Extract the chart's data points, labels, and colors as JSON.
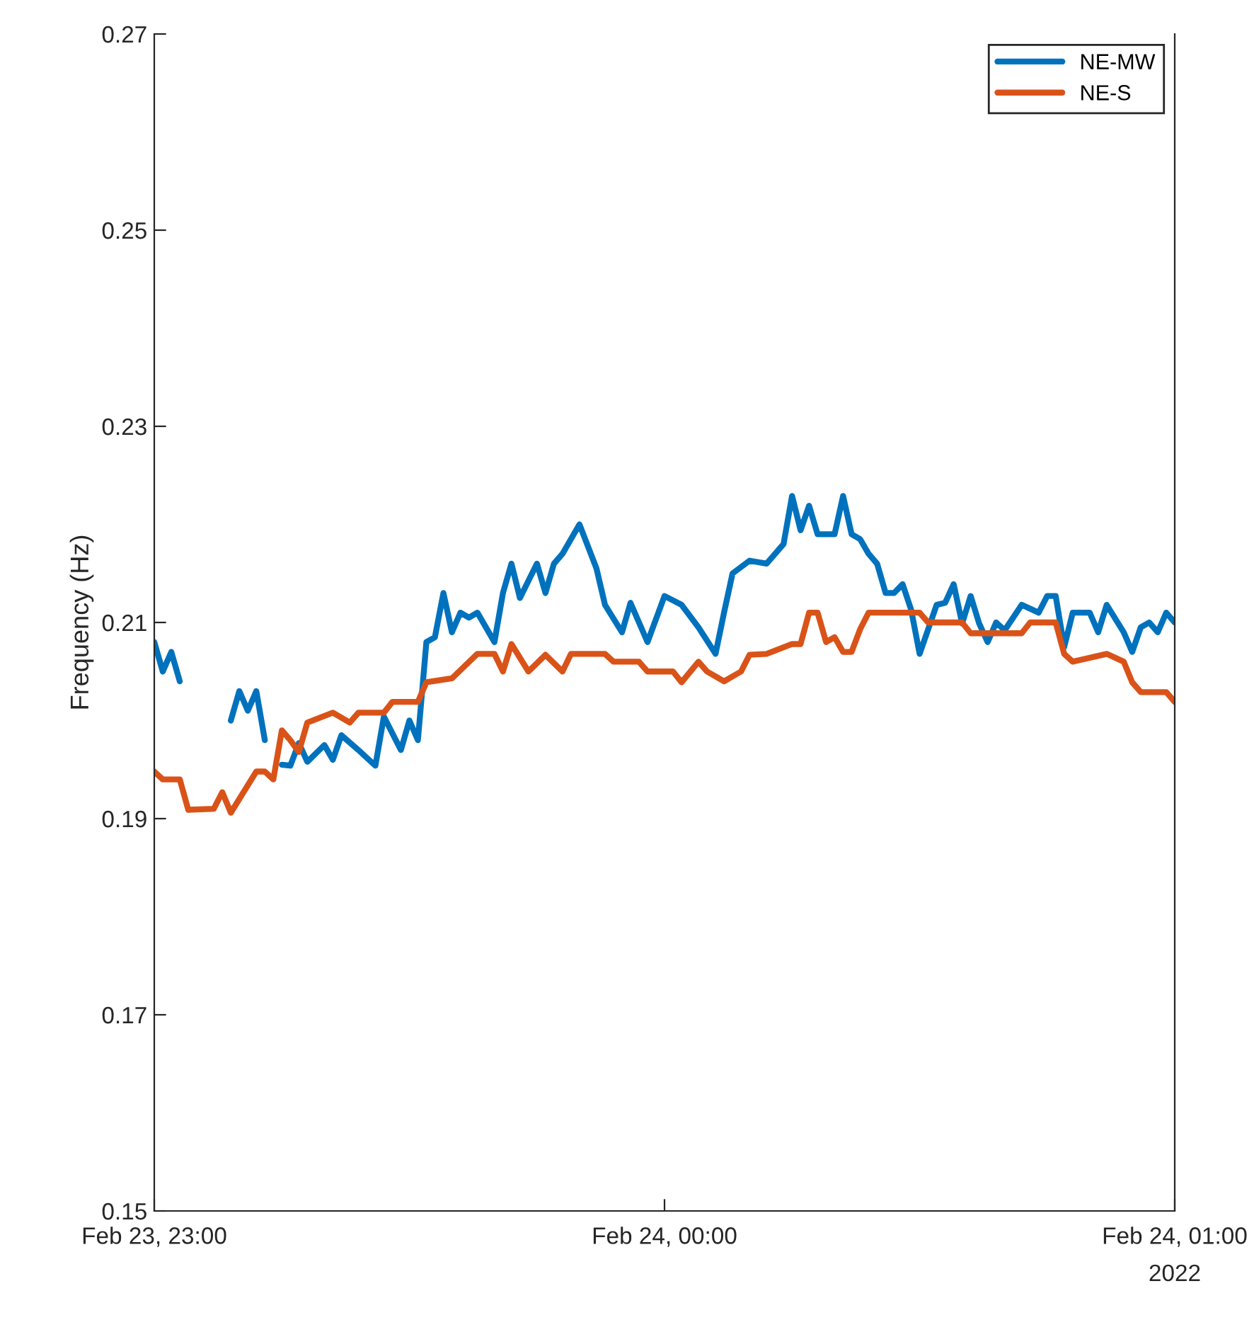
{
  "chart_data": {
    "type": "line",
    "ylabel": "Frequency (Hz)",
    "legend": "top right",
    "grid": false,
    "marker": "none",
    "line_style": "solid",
    "xlim": [
      "2022-02-23T23:00",
      "2022-02-24T01:00"
    ],
    "xticks": [
      {
        "value": "2022-02-23T23:00",
        "label": "Feb 23, 23:00"
      },
      {
        "value": "2022-02-24T00:00",
        "label": "Feb 24, 00:00"
      },
      {
        "value": "2022-02-24T01:00",
        "label": "Feb 24, 01:00"
      }
    ],
    "ylim": [
      0.15,
      0.27
    ],
    "yticks": [
      0.15,
      0.17,
      0.19,
      0.21,
      0.23,
      0.25,
      0.27
    ],
    "annotations": [
      "2022"
    ],
    "series": [
      {
        "name": "NE-MW",
        "color": "#0072bd",
        "x": [
          "2022-02-23T23:00",
          "2022-02-23T23:01",
          "2022-02-23T23:02",
          "2022-02-23T23:03",
          "2022-02-23T23:05",
          "2022-02-23T23:09",
          "2022-02-23T23:10",
          "2022-02-23T23:11",
          "2022-02-23T23:12",
          "2022-02-23T23:13",
          "2022-02-23T23:14",
          "2022-02-23T23:15",
          "2022-02-23T23:16",
          "2022-02-23T23:17",
          "2022-02-23T23:18",
          "2022-02-23T23:20",
          "2022-02-23T23:21",
          "2022-02-23T23:22",
          "2022-02-23T23:24",
          "2022-02-23T23:26",
          "2022-02-23T23:27",
          "2022-02-23T23:29",
          "2022-02-23T23:30",
          "2022-02-23T23:31",
          "2022-02-23T23:32",
          "2022-02-23T23:33",
          "2022-02-23T23:34",
          "2022-02-23T23:35",
          "2022-02-23T23:36",
          "2022-02-23T23:37",
          "2022-02-23T23:38",
          "2022-02-23T23:40",
          "2022-02-23T23:41",
          "2022-02-23T23:42",
          "2022-02-23T23:43",
          "2022-02-23T23:45",
          "2022-02-23T23:46",
          "2022-02-23T23:47",
          "2022-02-23T23:48",
          "2022-02-23T23:50",
          "2022-02-23T23:52",
          "2022-02-23T23:53",
          "2022-02-23T23:55",
          "2022-02-23T23:56",
          "2022-02-23T23:58",
          "2022-02-24T00:00",
          "2022-02-24T00:02",
          "2022-02-24T00:04",
          "2022-02-24T00:06",
          "2022-02-24T00:07",
          "2022-02-24T00:08",
          "2022-02-24T00:10",
          "2022-02-24T00:12",
          "2022-02-24T00:14",
          "2022-02-24T00:15",
          "2022-02-24T00:16",
          "2022-02-24T00:17",
          "2022-02-24T00:18",
          "2022-02-24T00:20",
          "2022-02-24T00:21",
          "2022-02-24T00:22",
          "2022-02-24T00:23",
          "2022-02-24T00:24",
          "2022-02-24T00:25",
          "2022-02-24T00:26",
          "2022-02-24T00:27",
          "2022-02-24T00:28",
          "2022-02-24T00:29",
          "2022-02-24T00:30",
          "2022-02-24T00:32",
          "2022-02-24T00:33",
          "2022-02-24T00:34",
          "2022-02-24T00:35",
          "2022-02-24T00:36",
          "2022-02-24T00:37",
          "2022-02-24T00:38",
          "2022-02-24T00:39",
          "2022-02-24T00:40",
          "2022-02-24T00:42",
          "2022-02-24T00:44",
          "2022-02-24T00:45",
          "2022-02-24T00:46",
          "2022-02-24T00:47",
          "2022-02-24T00:48",
          "2022-02-24T00:50",
          "2022-02-24T00:51",
          "2022-02-24T00:52",
          "2022-02-24T00:54",
          "2022-02-24T00:55",
          "2022-02-24T00:56",
          "2022-02-24T00:57",
          "2022-02-24T00:58",
          "2022-02-24T00:59",
          "2022-02-24T01:00"
        ],
        "values": [
          0.208,
          0.205,
          0.207,
          0.204,
          null,
          0.2,
          0.203,
          0.201,
          0.203,
          0.198,
          null,
          0.1955,
          0.1954,
          0.1977,
          0.1958,
          0.1975,
          0.196,
          0.1985,
          0.197,
          0.1954,
          0.2004,
          0.197,
          0.2,
          0.198,
          0.208,
          0.2085,
          0.213,
          0.209,
          0.211,
          0.2105,
          0.211,
          0.208,
          0.213,
          0.216,
          0.2125,
          0.216,
          0.213,
          0.216,
          0.217,
          0.22,
          0.2155,
          0.2118,
          0.209,
          0.212,
          0.208,
          0.2127,
          0.2118,
          0.2095,
          0.2068,
          0.211,
          0.215,
          0.2163,
          0.216,
          0.218,
          0.2229,
          0.2194,
          0.2219,
          0.219,
          0.219,
          0.2229,
          0.219,
          0.2185,
          0.217,
          0.216,
          0.213,
          0.213,
          0.2139,
          0.2113,
          0.2068,
          0.2118,
          0.212,
          0.2139,
          0.2099,
          0.2127,
          0.2099,
          0.208,
          0.21,
          0.2092,
          0.2118,
          0.211,
          0.2127,
          0.2127,
          0.2075,
          0.211,
          0.211,
          0.209,
          0.2118,
          0.209,
          0.207,
          0.2095,
          0.21,
          0.209,
          0.211,
          0.21
        ]
      },
      {
        "name": "NE-S",
        "color": "#d95319",
        "x": [
          "2022-02-23T23:00",
          "2022-02-23T23:01",
          "2022-02-23T23:03",
          "2022-02-23T23:04",
          "2022-02-23T23:07",
          "2022-02-23T23:08",
          "2022-02-23T23:09",
          "2022-02-23T23:10",
          "2022-02-23T23:12",
          "2022-02-23T23:13",
          "2022-02-23T23:14",
          "2022-02-23T23:15",
          "2022-02-23T23:16",
          "2022-02-23T23:17",
          "2022-02-23T23:18",
          "2022-02-23T23:21",
          "2022-02-23T23:23",
          "2022-02-23T23:24",
          "2022-02-23T23:27",
          "2022-02-23T23:28",
          "2022-02-23T23:31",
          "2022-02-23T23:32",
          "2022-02-23T23:35",
          "2022-02-23T23:38",
          "2022-02-23T23:40",
          "2022-02-23T23:41",
          "2022-02-23T23:42",
          "2022-02-23T23:44",
          "2022-02-23T23:46",
          "2022-02-23T23:48",
          "2022-02-23T23:49",
          "2022-02-23T23:53",
          "2022-02-23T23:54",
          "2022-02-23T23:57",
          "2022-02-23T23:58",
          "2022-02-24T00:01",
          "2022-02-24T00:02",
          "2022-02-24T00:04",
          "2022-02-24T00:05",
          "2022-02-24T00:07",
          "2022-02-24T00:09",
          "2022-02-24T00:10",
          "2022-02-24T00:12",
          "2022-02-24T00:15",
          "2022-02-24T00:16",
          "2022-02-24T00:17",
          "2022-02-24T00:18",
          "2022-02-24T00:19",
          "2022-02-24T00:20",
          "2022-02-24T00:21",
          "2022-02-24T00:22",
          "2022-02-24T00:23",
          "2022-02-24T00:24",
          "2022-02-24T00:30",
          "2022-02-24T00:31",
          "2022-02-24T00:35",
          "2022-02-24T00:36",
          "2022-02-24T00:42",
          "2022-02-24T00:43",
          "2022-02-24T00:46",
          "2022-02-24T00:47",
          "2022-02-24T00:48",
          "2022-02-24T00:52",
          "2022-02-24T00:54",
          "2022-02-24T00:55",
          "2022-02-24T00:56",
          "2022-02-24T00:59",
          "2022-02-24T01:00"
        ],
        "values": [
          0.1948,
          0.194,
          0.194,
          0.1909,
          0.191,
          0.1927,
          0.1906,
          0.192,
          0.1948,
          0.1948,
          0.194,
          0.199,
          0.198,
          0.1968,
          0.1998,
          0.2008,
          0.1998,
          0.2008,
          0.2008,
          0.2019,
          0.2019,
          0.2039,
          0.2043,
          0.2068,
          0.2068,
          0.205,
          0.2078,
          0.205,
          0.2067,
          0.205,
          0.2068,
          0.2068,
          0.206,
          0.206,
          0.205,
          0.205,
          0.2039,
          0.206,
          0.205,
          0.204,
          0.205,
          0.2067,
          0.2068,
          0.2078,
          0.2078,
          0.211,
          0.211,
          0.208,
          0.2085,
          0.207,
          0.207,
          0.2093,
          0.211,
          0.211,
          0.21,
          0.21,
          0.2089,
          0.2089,
          0.21,
          0.21,
          0.2068,
          0.206,
          0.2068,
          0.206,
          0.2039,
          0.2029,
          0.2029,
          0.2019
        ]
      }
    ]
  }
}
